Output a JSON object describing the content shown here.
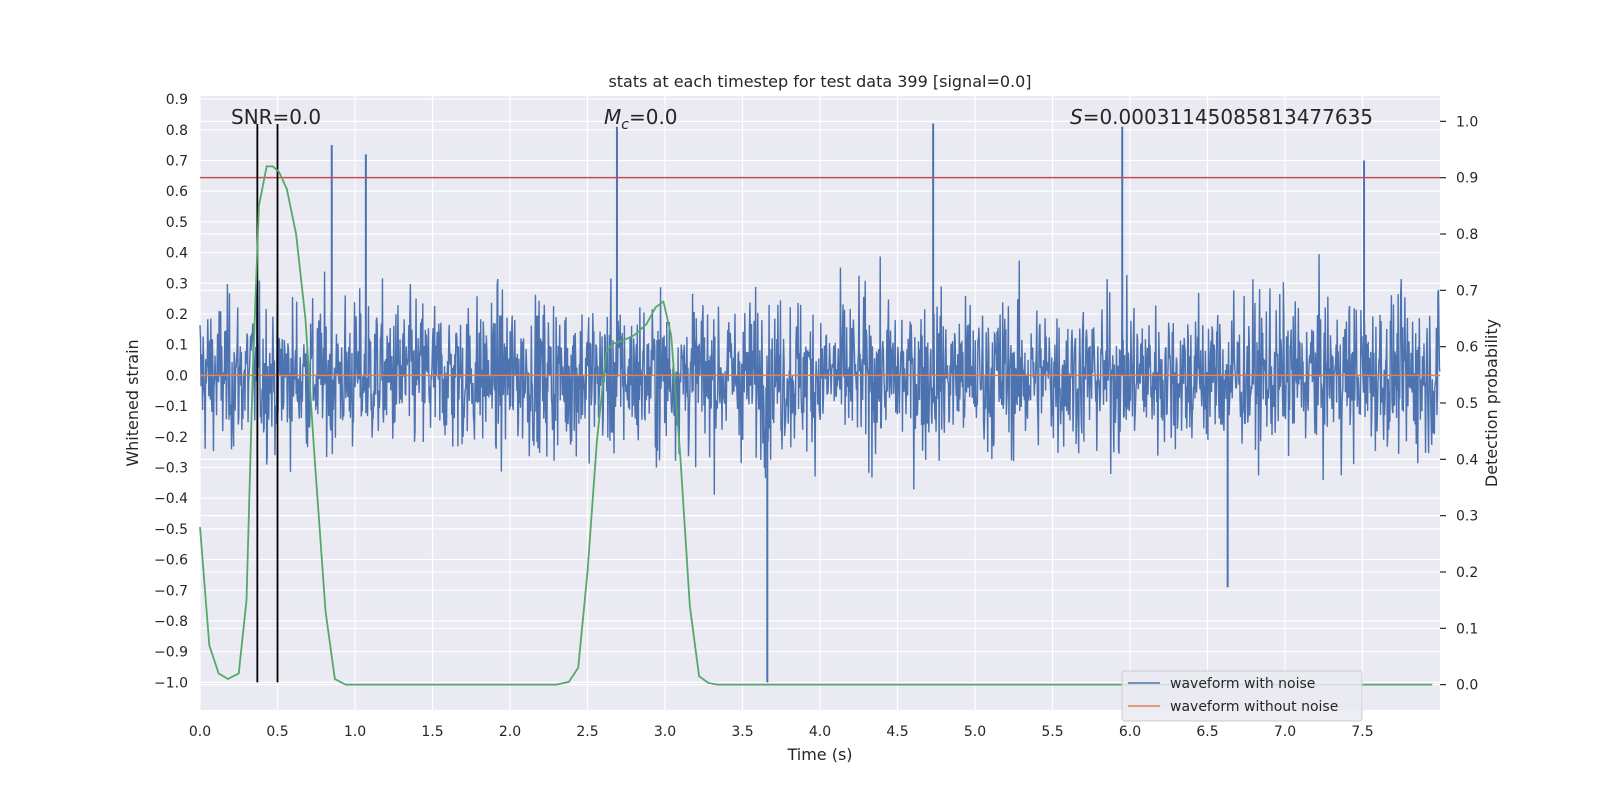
{
  "chart_data": {
    "type": "line",
    "title": "stats at each timestep for test data 399 [signal=0.0]",
    "xlabel": "Time (s)",
    "ylabel": "Whitened strain",
    "y2label": "Detection probability",
    "xlim": [
      0.0,
      8.0
    ],
    "ylim": [
      -1.09,
      0.91
    ],
    "y2lim": [
      -0.045,
      1.045
    ],
    "x_ticks": [
      0.0,
      0.5,
      1.0,
      1.5,
      2.0,
      2.5,
      3.0,
      3.5,
      4.0,
      4.5,
      5.0,
      5.5,
      6.0,
      6.5,
      7.0,
      7.5
    ],
    "x_tick_labels": [
      "0.0",
      "0.5",
      "1.0",
      "1.5",
      "2.0",
      "2.5",
      "3.0",
      "3.5",
      "4.0",
      "4.5",
      "5.0",
      "5.5",
      "6.0",
      "6.5",
      "7.0",
      "7.5"
    ],
    "y_ticks": [
      0.9,
      0.8,
      0.7,
      0.6,
      0.5,
      0.4,
      0.3,
      0.2,
      0.1,
      0.0,
      -0.1,
      -0.2,
      -0.3,
      -0.4,
      -0.5,
      -0.6,
      -0.7,
      -0.8,
      -0.9,
      -1.0
    ],
    "y_tick_labels": [
      "0.9",
      "0.8",
      "0.7",
      "0.6",
      "0.5",
      "0.4",
      "0.3",
      "0.2",
      "0.1",
      "0.0",
      "−0.1",
      "−0.2",
      "−0.3",
      "−0.4",
      "−0.5",
      "−0.6",
      "−0.7",
      "−0.8",
      "−0.9",
      "−1.0"
    ],
    "y2_ticks": [
      1.0,
      0.9,
      0.8,
      0.7,
      0.6,
      0.5,
      0.4,
      0.3,
      0.2,
      0.1,
      0.0
    ],
    "y2_tick_labels": [
      "1.0",
      "0.9",
      "0.8",
      "0.7",
      "0.6",
      "0.5",
      "0.4",
      "0.3",
      "0.2",
      "0.1",
      "0.0"
    ],
    "grid": true,
    "legend_placement": "lower-right",
    "annotations": {
      "snr": "SNR=0.0",
      "mc_prefix": "M",
      "mc_sub": "c",
      "mc_suffix": "=0.0",
      "s_prefix": "S",
      "s_suffix": "=0.00031145085813477635"
    },
    "vertical_lines_x": [
      0.37,
      0.5
    ],
    "threshold_y2": 0.9,
    "series": [
      {
        "name": "waveform with noise",
        "color": "#4c72b0",
        "envelope_typical": 0.28,
        "spikes": [
          {
            "x": 0.85,
            "y": 0.75
          },
          {
            "x": 1.07,
            "y": 0.72
          },
          {
            "x": 2.69,
            "y": 0.81
          },
          {
            "x": 3.66,
            "y": -1.0
          },
          {
            "x": 4.73,
            "y": 0.82
          },
          {
            "x": 5.95,
            "y": 0.81
          },
          {
            "x": 6.63,
            "y": -0.69
          },
          {
            "x": 7.51,
            "y": 0.7
          }
        ]
      },
      {
        "name": "waveform without noise",
        "color": "#dd8452",
        "value": 0.0
      },
      {
        "name": "Detection probability",
        "color": "#55a868",
        "axis": "y2",
        "x": [
          0.0,
          0.06,
          0.12,
          0.18,
          0.25,
          0.3,
          0.34,
          0.38,
          0.43,
          0.47,
          0.51,
          0.56,
          0.62,
          0.68,
          0.74,
          0.81,
          0.87,
          0.94,
          1.0,
          1.5,
          2.0,
          2.2,
          2.3,
          2.38,
          2.44,
          2.5,
          2.56,
          2.62,
          2.66,
          2.72,
          2.8,
          2.88,
          2.94,
          2.99,
          3.04,
          3.1,
          3.16,
          3.22,
          3.28,
          3.34,
          3.5,
          4.0,
          5.0,
          6.0,
          7.0,
          7.95
        ],
        "y": [
          0.28,
          0.07,
          0.02,
          0.01,
          0.02,
          0.15,
          0.55,
          0.85,
          0.92,
          0.92,
          0.91,
          0.88,
          0.8,
          0.65,
          0.4,
          0.13,
          0.01,
          0.0,
          0.0,
          0.0,
          0.0,
          0.0,
          0.0,
          0.005,
          0.03,
          0.2,
          0.43,
          0.59,
          0.605,
          0.61,
          0.62,
          0.64,
          0.67,
          0.68,
          0.62,
          0.4,
          0.14,
          0.015,
          0.003,
          0.0,
          0.0,
          0.0,
          0.0,
          0.0,
          0.0,
          0.0
        ]
      }
    ]
  }
}
